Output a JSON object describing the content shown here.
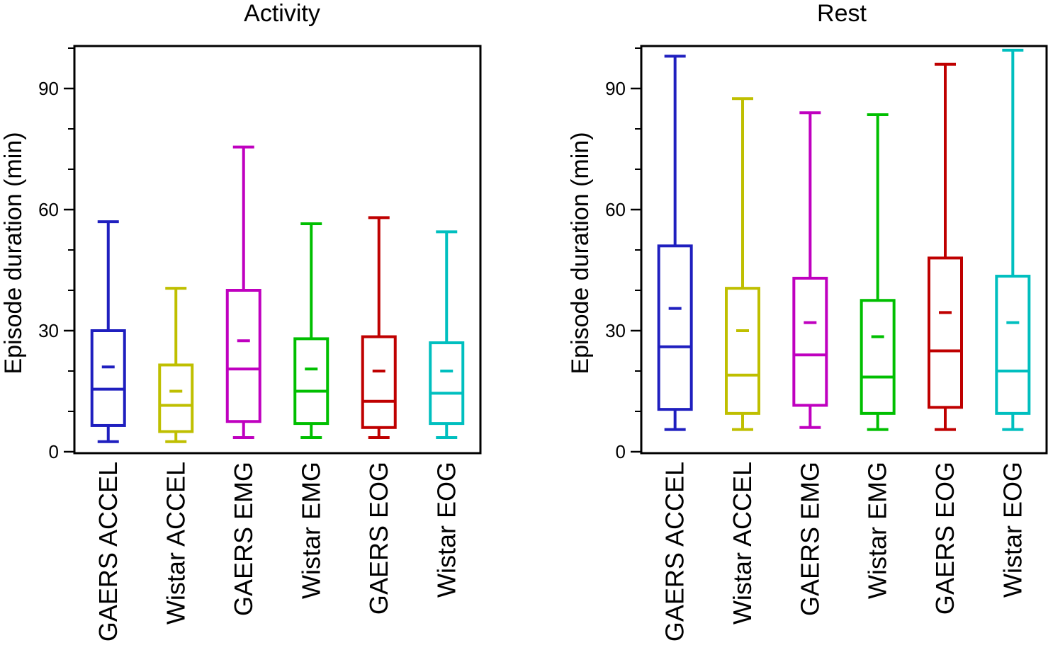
{
  "chart_data": [
    {
      "type": "box",
      "title": "Activity",
      "ylabel": "Episode duration (min)",
      "xlabel": "",
      "ylim": [
        0,
        100
      ],
      "yticks": [
        0,
        30,
        60,
        90
      ],
      "categories": [
        "GAERS ACCEL",
        "Wistar ACCEL",
        "GAERS EMG",
        "Wistar EMG",
        "GAERS EOG",
        "Wistar EOG"
      ],
      "colors": [
        "#1f1fbf",
        "#bfbf00",
        "#bf00bf",
        "#00bf00",
        "#bf0000",
        "#00bfbf"
      ],
      "boxes": [
        {
          "whisker_low": 2.5,
          "q1": 6.5,
          "median": 15.5,
          "mean": 21.0,
          "q3": 30.0,
          "whisker_high": 57.0
        },
        {
          "whisker_low": 2.5,
          "q1": 5.0,
          "median": 11.5,
          "mean": 15.0,
          "q3": 21.5,
          "whisker_high": 40.5
        },
        {
          "whisker_low": 3.5,
          "q1": 7.5,
          "median": 20.5,
          "mean": 27.5,
          "q3": 40.0,
          "whisker_high": 75.5
        },
        {
          "whisker_low": 3.5,
          "q1": 7.0,
          "median": 15.0,
          "mean": 20.5,
          "q3": 28.0,
          "whisker_high": 56.5
        },
        {
          "whisker_low": 3.5,
          "q1": 6.0,
          "median": 12.5,
          "mean": 20.0,
          "q3": 28.5,
          "whisker_high": 58.0
        },
        {
          "whisker_low": 3.5,
          "q1": 7.0,
          "median": 14.5,
          "mean": 20.0,
          "q3": 27.0,
          "whisker_high": 54.5
        }
      ]
    },
    {
      "type": "box",
      "title": "Rest",
      "ylabel": "Episode duration (min)",
      "xlabel": "",
      "ylim": [
        0,
        100
      ],
      "yticks": [
        0,
        30,
        60,
        90
      ],
      "categories": [
        "GAERS ACCEL",
        "Wistar ACCEL",
        "GAERS EMG",
        "Wistar EMG",
        "GAERS EOG",
        "Wistar EOG"
      ],
      "colors": [
        "#1f1fbf",
        "#bfbf00",
        "#bf00bf",
        "#00bf00",
        "#bf0000",
        "#00bfbf"
      ],
      "boxes": [
        {
          "whisker_low": 5.5,
          "q1": 10.5,
          "median": 26.0,
          "mean": 35.5,
          "q3": 51.0,
          "whisker_high": 98.0
        },
        {
          "whisker_low": 5.5,
          "q1": 9.5,
          "median": 19.0,
          "mean": 30.0,
          "q3": 40.5,
          "whisker_high": 87.5
        },
        {
          "whisker_low": 6.0,
          "q1": 11.5,
          "median": 24.0,
          "mean": 32.0,
          "q3": 43.0,
          "whisker_high": 84.0
        },
        {
          "whisker_low": 5.5,
          "q1": 9.5,
          "median": 18.5,
          "mean": 28.5,
          "q3": 37.5,
          "whisker_high": 83.5
        },
        {
          "whisker_low": 5.5,
          "q1": 11.0,
          "median": 25.0,
          "mean": 34.5,
          "q3": 48.0,
          "whisker_high": 96.0
        },
        {
          "whisker_low": 5.5,
          "q1": 9.5,
          "median": 20.0,
          "mean": 32.0,
          "q3": 43.5,
          "whisker_high": 99.5
        }
      ]
    }
  ]
}
